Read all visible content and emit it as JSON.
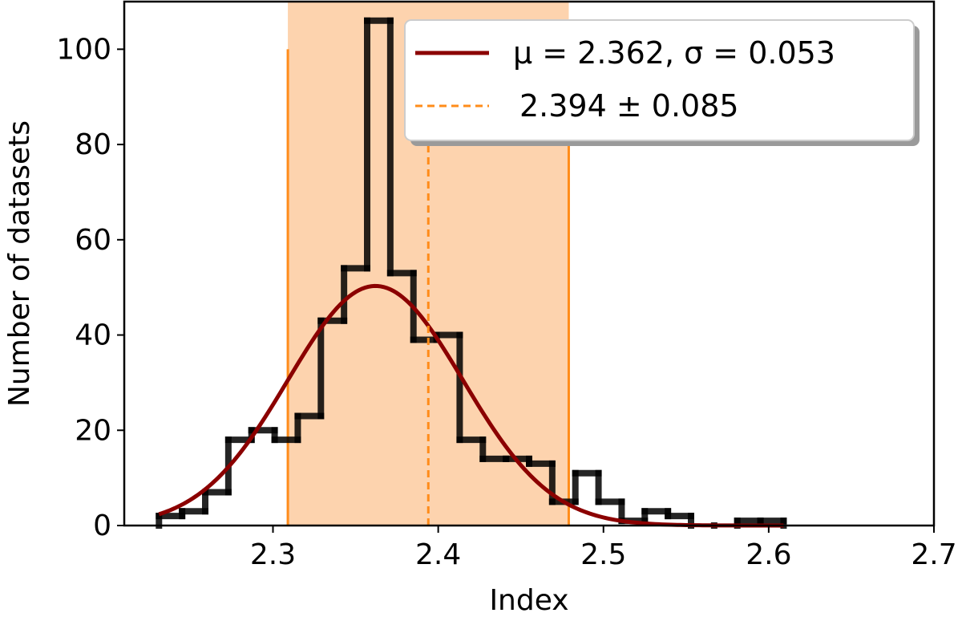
{
  "chart_data": {
    "type": "histogram",
    "xlabel": "Index",
    "ylabel": "Number of datasets",
    "xlim": [
      2.21,
      2.7
    ],
    "ylim": [
      0,
      110
    ],
    "x_ticks": [
      2.3,
      2.4,
      2.5,
      2.6,
      2.7
    ],
    "x_tick_labels": [
      "2.3",
      "2.4",
      "2.5",
      "2.6",
      "2.7"
    ],
    "y_ticks": [
      0,
      20,
      40,
      60,
      80,
      100
    ],
    "y_tick_labels": [
      "0",
      "20",
      "40",
      "60",
      "80",
      "100"
    ],
    "grid": false,
    "legend_position": "top-right",
    "histogram": {
      "name": "",
      "color": "#000000",
      "bin_edges": [
        2.231,
        2.245,
        2.259,
        2.273,
        2.287,
        2.301,
        2.315,
        2.329,
        2.343,
        2.357,
        2.371,
        2.385,
        2.399,
        2.413,
        2.427,
        2.441,
        2.455,
        2.469,
        2.483,
        2.497,
        2.511,
        2.525,
        2.539,
        2.553,
        2.567,
        2.581,
        2.595,
        2.609
      ],
      "counts": [
        2,
        3,
        7,
        18,
        20,
        18,
        23,
        43,
        54,
        106,
        53,
        39,
        40,
        18,
        14,
        14,
        13,
        5,
        11,
        5,
        1,
        3,
        2,
        0,
        0,
        1,
        1
      ]
    },
    "gaussian_fit": {
      "label": "μ = 2.362, σ = 0.053",
      "mu": 2.362,
      "sigma": 0.053,
      "peak": 50.3,
      "x_range": [
        2.231,
        2.609
      ],
      "color": "#8b0000"
    },
    "vertical_line": {
      "label": "2.394 ± 0.085",
      "value": 2.394,
      "uncertainty": 0.085,
      "band": [
        2.309,
        2.479
      ],
      "line_color": "#ff8c1a",
      "band_color": "#fdd3ae",
      "band_edge_height": 100
    }
  }
}
